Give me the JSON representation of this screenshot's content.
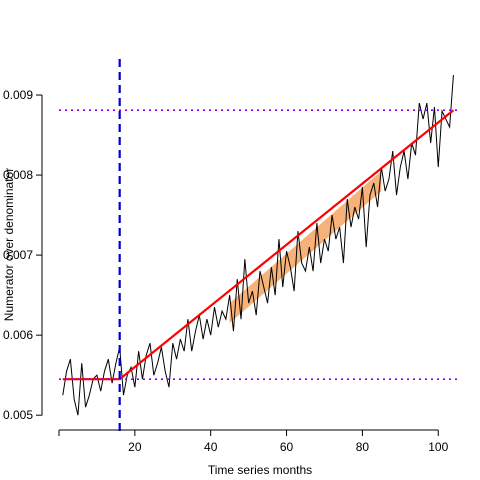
{
  "chart_data": {
    "type": "line",
    "title": "",
    "xlabel": "Time series months",
    "ylabel": "Numerator over denominator",
    "xlim": [
      0,
      106
    ],
    "ylim": [
      0.00494,
      0.00945
    ],
    "xticks": [
      20,
      40,
      60,
      80,
      100
    ],
    "xtick_labels": [
      "20",
      "40",
      "60",
      "80",
      "100"
    ],
    "yticks": [
      0.005,
      0.006,
      0.007,
      0.008,
      0.009
    ],
    "ytick_labels": [
      "0.005",
      "0.006",
      "0.007",
      "0.008",
      "0.009"
    ],
    "grid": false,
    "legend": "none",
    "colors": {
      "observed": "#000000",
      "fit": "#ff0000",
      "band": "#f4a460",
      "change_point": "#0000cc",
      "reference": "#8800ff"
    },
    "series": [
      {
        "x": [
          1,
          2,
          3,
          4,
          5,
          6,
          7,
          8,
          9,
          10,
          11,
          12,
          13,
          14,
          15,
          16,
          17,
          18,
          19,
          20,
          21,
          22,
          23,
          24,
          25,
          26,
          27,
          28,
          29,
          30,
          31,
          32,
          33,
          34,
          35,
          36,
          37,
          38,
          39,
          40,
          41,
          42,
          43,
          44,
          45,
          46,
          47,
          48,
          49,
          50,
          51,
          52,
          53,
          54,
          55,
          56,
          57,
          58,
          59,
          60,
          61,
          62,
          63,
          64,
          65,
          66,
          67,
          68,
          69,
          70,
          71,
          72,
          73,
          74,
          75,
          76,
          77,
          78,
          79,
          80,
          81,
          82,
          83,
          84,
          85,
          86,
          87,
          88,
          89,
          90,
          91,
          92,
          93,
          94,
          95,
          96,
          97,
          98,
          99,
          100,
          101,
          102,
          103,
          104
        ],
        "values": [
          0.00525,
          0.00555,
          0.0057,
          0.0052,
          0.005,
          0.00565,
          0.0051,
          0.00525,
          0.00545,
          0.0055,
          0.0053,
          0.00555,
          0.0057,
          0.0054,
          0.00565,
          0.00585,
          0.00525,
          0.0055,
          0.0056,
          0.00535,
          0.0058,
          0.00545,
          0.00575,
          0.0059,
          0.0055,
          0.00565,
          0.00585,
          0.00555,
          0.00535,
          0.0059,
          0.0057,
          0.00595,
          0.0058,
          0.0062,
          0.0058,
          0.00605,
          0.00625,
          0.00595,
          0.0062,
          0.006,
          0.00635,
          0.0061,
          0.0063,
          0.0062,
          0.0065,
          0.00605,
          0.0067,
          0.0062,
          0.00695,
          0.0064,
          0.00655,
          0.00625,
          0.0068,
          0.0066,
          0.0064,
          0.00685,
          0.0065,
          0.0072,
          0.0066,
          0.00705,
          0.00685,
          0.00655,
          0.0073,
          0.0069,
          0.0068,
          0.0071,
          0.0068,
          0.0074,
          0.0069,
          0.0072,
          0.00705,
          0.0075,
          0.0072,
          0.00735,
          0.0069,
          0.0077,
          0.00735,
          0.0076,
          0.00745,
          0.00785,
          0.0071,
          0.00775,
          0.0079,
          0.0076,
          0.0081,
          0.0078,
          0.00795,
          0.0083,
          0.00775,
          0.0081,
          0.0083,
          0.00795,
          0.0084,
          0.00825,
          0.0089,
          0.0087,
          0.0089,
          0.0084,
          0.00885,
          0.0081,
          0.0088,
          0.0087,
          0.0086,
          0.00925
        ]
      }
    ],
    "fit_line": {
      "segments": [
        {
          "x": [
            1,
            16
          ],
          "values": [
            0.00545,
            0.00545
          ]
        },
        {
          "x": [
            16,
            104
          ],
          "values": [
            0.00545,
            0.00881
          ]
        }
      ]
    },
    "confidence_band": {
      "x": [
        45,
        85
      ],
      "lower": [
        0.00615,
        0.0078
      ],
      "upper": [
        0.0064,
        0.00805
      ]
    },
    "change_point": {
      "x": 16
    },
    "reference_lines": [
      {
        "y": 0.00881
      },
      {
        "y": 0.00545
      }
    ]
  }
}
